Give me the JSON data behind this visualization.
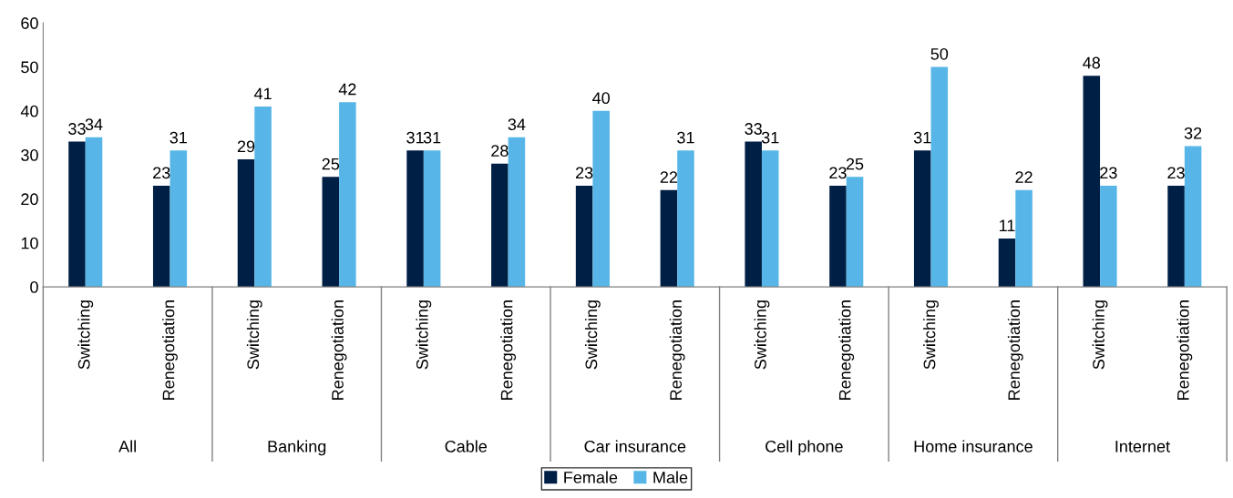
{
  "chart_data": {
    "type": "bar",
    "categories": [
      "Switching",
      "Renegotiation",
      "Switching",
      "Renegotiation",
      "Switching",
      "Renegotiation",
      "Switching",
      "Renegotiation",
      "Switching",
      "Renegotiation",
      "Switching",
      "Renegotiation",
      "Switching",
      "Renegotiation"
    ],
    "annotations": [
      "All",
      "Banking",
      "Cable",
      "Car insurance",
      "Cell phone",
      "Home insurance",
      "Internet"
    ],
    "series": [
      {
        "name": "Female",
        "color": "#001f45",
        "values": [
          33,
          23,
          29,
          25,
          31,
          28,
          23,
          22,
          33,
          23,
          31,
          11,
          48,
          23
        ]
      },
      {
        "name": "Male",
        "color": "#57b6e7",
        "values": [
          34,
          31,
          41,
          42,
          31,
          34,
          40,
          31,
          31,
          25,
          50,
          22,
          23,
          32
        ]
      }
    ],
    "ylim": [
      0,
      60
    ],
    "yticks": [
      0,
      10,
      20,
      30,
      40,
      50,
      60
    ],
    "data_labels": true,
    "grid": false,
    "legend": "bottom"
  }
}
